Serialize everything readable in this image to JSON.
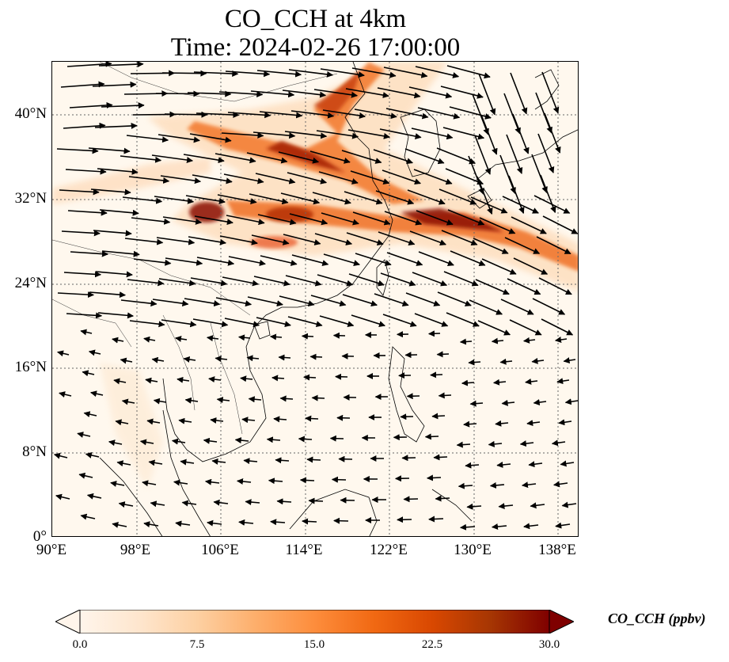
{
  "title_line1": "CO_CCH at 4km",
  "title_line2": "Time: 2024-02-26 17:00:00",
  "axes": {
    "lon_ticks": [
      "90°E",
      "98°E",
      "106°E",
      "114°E",
      "122°E",
      "130°E",
      "138°E"
    ],
    "lat_ticks": [
      "40°N",
      "32°N",
      "24°N",
      "16°N",
      "8°N",
      "0°"
    ]
  },
  "map_extent": {
    "lon": [
      90,
      140
    ],
    "lat": [
      0,
      45
    ]
  },
  "gridlines": true,
  "colorbar": {
    "label": "CO_CCH (ppbv)",
    "ticks": [
      "0.0",
      "7.5",
      "15.0",
      "22.5",
      "30.0"
    ],
    "range": [
      0,
      30
    ],
    "colormap": [
      "#fff5eb",
      "#fee6ce",
      "#fdd0a2",
      "#fdae6b",
      "#fd8d3c",
      "#f16913",
      "#d94801",
      "#a63603",
      "#7f0000"
    ]
  },
  "plume_areas": [
    {
      "region": "North China Plain band",
      "level": 22
    },
    {
      "region": "Yangtze / East China Sea band",
      "level": 25
    },
    {
      "region": "Sichuan Basin",
      "level": 24
    }
  ]
}
